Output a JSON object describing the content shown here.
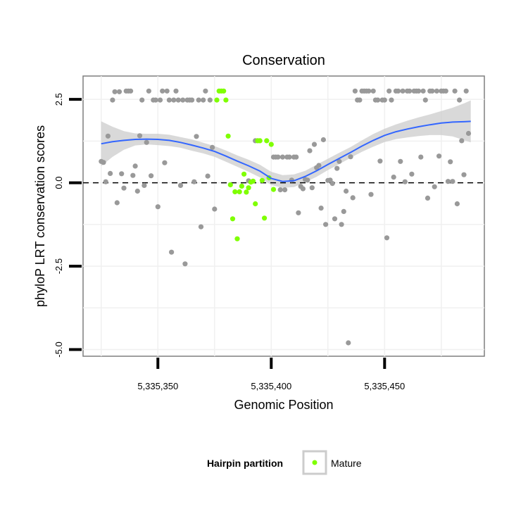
{
  "chart_data": {
    "type": "scatter",
    "title": "Conservation",
    "xlabel": "Genomic Position",
    "ylabel": "phyloP LRT conservation scores",
    "xlim": [
      5335317,
      5335494
    ],
    "ylim": [
      -5.2,
      3.2
    ],
    "x_ticks": [
      {
        "value": 5335350,
        "label": "5,335,350"
      },
      {
        "value": 5335400,
        "label": "5,335,400"
      },
      {
        "value": 5335450,
        "label": "5,335,450"
      }
    ],
    "y_ticks": [
      {
        "value": -5.0,
        "label": "-5.0"
      },
      {
        "value": -2.5,
        "label": "-2.5"
      },
      {
        "value": 0.0,
        "label": "0.0"
      },
      {
        "value": 2.5,
        "label": "2.5"
      }
    ],
    "grid": true,
    "reference_line": {
      "y": 0,
      "style": "dashed"
    },
    "legend": {
      "title": "Hairpin partition",
      "position": "bottom",
      "entries": [
        {
          "label": "Mature",
          "color": "#7fff00"
        }
      ]
    },
    "colors": {
      "other": "#999999",
      "mature": "#7fff00",
      "smooth": "#3366ff",
      "band": "#cccccc"
    },
    "series": [
      {
        "name": "",
        "color": "#999999",
        "points": [
          [
            5335325,
            0.64
          ],
          [
            5335326,
            0.61
          ],
          [
            5335327,
            0.03
          ],
          [
            5335328,
            1.4
          ],
          [
            5335329,
            0.28
          ],
          [
            5335330,
            2.48
          ],
          [
            5335331,
            2.73
          ],
          [
            5335332,
            -0.6
          ],
          [
            5335333,
            2.73
          ],
          [
            5335334,
            0.27
          ],
          [
            5335335,
            -0.16
          ],
          [
            5335336,
            2.75
          ],
          [
            5335337,
            2.75
          ],
          [
            5335338,
            2.75
          ],
          [
            5335339,
            0.22
          ],
          [
            5335340,
            0.5
          ],
          [
            5335341,
            -0.25
          ],
          [
            5335342,
            1.41
          ],
          [
            5335343,
            2.48
          ],
          [
            5335344,
            -0.08
          ],
          [
            5335345,
            1.21
          ],
          [
            5335346,
            2.75
          ],
          [
            5335347,
            0.21
          ],
          [
            5335348,
            2.48
          ],
          [
            5335349,
            2.48
          ],
          [
            5335350,
            -0.72
          ],
          [
            5335351,
            2.48
          ],
          [
            5335352,
            2.75
          ],
          [
            5335353,
            0.6
          ],
          [
            5335354,
            2.75
          ],
          [
            5335355,
            2.48
          ],
          [
            5335356,
            -2.08
          ],
          [
            5335357,
            2.48
          ],
          [
            5335358,
            2.75
          ],
          [
            5335359,
            2.48
          ],
          [
            5335360,
            -0.08
          ],
          [
            5335361,
            2.48
          ],
          [
            5335362,
            -2.43
          ],
          [
            5335363,
            2.48
          ],
          [
            5335364,
            2.48
          ],
          [
            5335365,
            2.48
          ],
          [
            5335366,
            0.03
          ],
          [
            5335367,
            1.39
          ],
          [
            5335368,
            2.48
          ],
          [
            5335369,
            -1.32
          ],
          [
            5335370,
            2.48
          ],
          [
            5335371,
            2.75
          ],
          [
            5335372,
            0.2
          ],
          [
            5335373,
            2.48
          ],
          [
            5335374,
            1.06
          ],
          [
            5335375,
            -0.79
          ],
          [
            5335390,
            0.06
          ],
          [
            5335393,
            1.26
          ],
          [
            5335401,
            0.77
          ],
          [
            5335402,
            0.77
          ],
          [
            5335403,
            0.77
          ],
          [
            5335404,
            -0.21
          ],
          [
            5335405,
            0.77
          ],
          [
            5335406,
            -0.21
          ],
          [
            5335407,
            0.77
          ],
          [
            5335408,
            0.77
          ],
          [
            5335409,
            0.08
          ],
          [
            5335410,
            0.77
          ],
          [
            5335411,
            0.77
          ],
          [
            5335412,
            -0.9
          ],
          [
            5335413,
            -0.11
          ],
          [
            5335414,
            -0.18
          ],
          [
            5335415,
            0.1
          ],
          [
            5335416,
            0.08
          ],
          [
            5335417,
            0.96
          ],
          [
            5335418,
            -0.15
          ],
          [
            5335419,
            1.15
          ],
          [
            5335420,
            0.45
          ],
          [
            5335421,
            0.52
          ],
          [
            5335422,
            -0.76
          ],
          [
            5335423,
            1.29
          ],
          [
            5335424,
            -1.25
          ],
          [
            5335425,
            0.07
          ],
          [
            5335426,
            0.08
          ],
          [
            5335427,
            -0.02
          ],
          [
            5335428,
            -1.08
          ],
          [
            5335429,
            0.43
          ],
          [
            5335430,
            0.64
          ],
          [
            5335431,
            -1.25
          ],
          [
            5335432,
            -0.86
          ],
          [
            5335433,
            -0.25
          ],
          [
            5335434,
            -4.8
          ],
          [
            5335435,
            0.78
          ],
          [
            5335436,
            -0.45
          ],
          [
            5335437,
            2.75
          ],
          [
            5335438,
            2.48
          ],
          [
            5335439,
            2.48
          ],
          [
            5335440,
            2.75
          ],
          [
            5335441,
            2.75
          ],
          [
            5335442,
            2.75
          ],
          [
            5335443,
            2.75
          ],
          [
            5335444,
            -0.35
          ],
          [
            5335445,
            2.75
          ],
          [
            5335446,
            2.48
          ],
          [
            5335447,
            2.48
          ],
          [
            5335448,
            0.65
          ],
          [
            5335449,
            2.48
          ],
          [
            5335450,
            2.48
          ],
          [
            5335451,
            -1.65
          ],
          [
            5335452,
            2.75
          ],
          [
            5335453,
            2.48
          ],
          [
            5335454,
            0.17
          ],
          [
            5335455,
            2.75
          ],
          [
            5335456,
            2.75
          ],
          [
            5335457,
            0.64
          ],
          [
            5335458,
            2.75
          ],
          [
            5335459,
            0.03
          ],
          [
            5335460,
            2.75
          ],
          [
            5335461,
            2.75
          ],
          [
            5335462,
            0.26
          ],
          [
            5335463,
            2.75
          ],
          [
            5335464,
            2.75
          ],
          [
            5335465,
            2.75
          ],
          [
            5335466,
            0.77
          ],
          [
            5335467,
            2.75
          ],
          [
            5335468,
            2.48
          ],
          [
            5335469,
            -0.46
          ],
          [
            5335470,
            2.75
          ],
          [
            5335471,
            2.75
          ],
          [
            5335472,
            -0.12
          ],
          [
            5335473,
            2.75
          ],
          [
            5335474,
            0.8
          ],
          [
            5335475,
            2.75
          ],
          [
            5335476,
            2.75
          ],
          [
            5335477,
            2.75
          ],
          [
            5335478,
            0.04
          ],
          [
            5335479,
            0.63
          ],
          [
            5335480,
            0.04
          ],
          [
            5335481,
            2.75
          ],
          [
            5335482,
            -0.63
          ],
          [
            5335483,
            2.48
          ],
          [
            5335484,
            1.26
          ],
          [
            5335485,
            0.24
          ],
          [
            5335486,
            2.75
          ],
          [
            5335487,
            1.48
          ]
        ]
      },
      {
        "name": "Mature",
        "color": "#7fff00",
        "points": [
          [
            5335376,
            2.48
          ],
          [
            5335377,
            2.75
          ],
          [
            5335378,
            2.75
          ],
          [
            5335379,
            2.75
          ],
          [
            5335380,
            2.48
          ],
          [
            5335381,
            1.4
          ],
          [
            5335382,
            -0.06
          ],
          [
            5335383,
            -1.08
          ],
          [
            5335384,
            -0.27
          ],
          [
            5335385,
            -1.68
          ],
          [
            5335386,
            -0.27
          ],
          [
            5335387,
            -0.1
          ],
          [
            5335388,
            0.26
          ],
          [
            5335389,
            -0.28
          ],
          [
            5335390,
            -0.15
          ],
          [
            5335391,
            0.02
          ],
          [
            5335392,
            0.05
          ],
          [
            5335393,
            -0.63
          ],
          [
            5335394,
            1.26
          ],
          [
            5335395,
            1.26
          ],
          [
            5335396,
            0.07
          ],
          [
            5335397,
            -1.06
          ],
          [
            5335398,
            1.26
          ],
          [
            5335399,
            0.15
          ],
          [
            5335400,
            1.15
          ],
          [
            5335401,
            -0.2
          ]
        ]
      }
    ],
    "smooth": {
      "x": [
        5335325,
        5335330,
        5335335,
        5335340,
        5335345,
        5335350,
        5335355,
        5335360,
        5335365,
        5335370,
        5335375,
        5335380,
        5335385,
        5335390,
        5335395,
        5335400,
        5335405,
        5335410,
        5335415,
        5335420,
        5335425,
        5335430,
        5335435,
        5335440,
        5335445,
        5335450,
        5335455,
        5335460,
        5335465,
        5335470,
        5335475,
        5335480,
        5335485,
        5335488
      ],
      "y": [
        1.17,
        1.23,
        1.27,
        1.3,
        1.31,
        1.3,
        1.27,
        1.21,
        1.13,
        1.04,
        0.94,
        0.8,
        0.65,
        0.51,
        0.35,
        0.13,
        0.04,
        0.06,
        0.19,
        0.36,
        0.55,
        0.73,
        0.91,
        1.1,
        1.27,
        1.42,
        1.53,
        1.61,
        1.68,
        1.74,
        1.79,
        1.82,
        1.83,
        1.84
      ]
    },
    "band": {
      "upper": [
        1.84,
        1.68,
        1.55,
        1.48,
        1.47,
        1.47,
        1.44,
        1.37,
        1.3,
        1.2,
        1.1,
        0.97,
        0.82,
        0.69,
        0.54,
        0.33,
        0.23,
        0.25,
        0.36,
        0.54,
        0.72,
        0.9,
        1.07,
        1.27,
        1.46,
        1.62,
        1.75,
        1.86,
        1.96,
        2.05,
        2.15,
        2.25,
        2.38,
        2.47
      ],
      "lower": [
        0.5,
        0.78,
        0.99,
        1.12,
        1.15,
        1.13,
        1.1,
        1.05,
        0.96,
        0.88,
        0.78,
        0.63,
        0.48,
        0.33,
        0.16,
        -0.07,
        -0.15,
        -0.13,
        0.02,
        0.18,
        0.38,
        0.56,
        0.75,
        0.93,
        1.08,
        1.22,
        1.31,
        1.36,
        1.4,
        1.43,
        1.43,
        1.39,
        1.28,
        1.21
      ]
    }
  }
}
